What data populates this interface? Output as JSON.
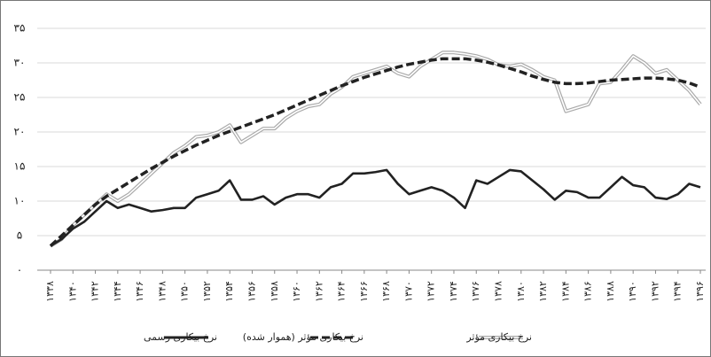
{
  "chart_data": {
    "type": "line",
    "x": [
      1338,
      1339,
      1340,
      1341,
      1342,
      1343,
      1344,
      1345,
      1346,
      1347,
      1348,
      1349,
      1350,
      1351,
      1352,
      1353,
      1354,
      1355,
      1356,
      1357,
      1358,
      1359,
      1360,
      1361,
      1362,
      1363,
      1364,
      1365,
      1366,
      1367,
      1368,
      1369,
      1370,
      1371,
      1372,
      1373,
      1374,
      1375,
      1376,
      1377,
      1378,
      1379,
      1380,
      1381,
      1382,
      1383,
      1384,
      1385,
      1386,
      1387,
      1388,
      1389,
      1390,
      1391,
      1392,
      1393,
      1394,
      1395,
      1396
    ],
    "xlim": [
      1338,
      1396
    ],
    "xticks": [
      {
        "value": 1338,
        "label": "۱۳۳۸"
      },
      {
        "value": 1340,
        "label": "۱۳۴۰"
      },
      {
        "value": 1342,
        "label": "۱۳۴۲"
      },
      {
        "value": 1344,
        "label": "۱۳۴۴"
      },
      {
        "value": 1346,
        "label": "۱۳۴۶"
      },
      {
        "value": 1348,
        "label": "۱۳۴۸"
      },
      {
        "value": 1350,
        "label": "۱۳۵۰"
      },
      {
        "value": 1352,
        "label": "۱۳۵۲"
      },
      {
        "value": 1354,
        "label": "۱۳۵۴"
      },
      {
        "value": 1356,
        "label": "۱۳۵۶"
      },
      {
        "value": 1358,
        "label": "۱۳۵۸"
      },
      {
        "value": 1360,
        "label": "۱۳۶۰"
      },
      {
        "value": 1362,
        "label": "۱۳۶۲"
      },
      {
        "value": 1364,
        "label": "۱۳۶۴"
      },
      {
        "value": 1366,
        "label": "۱۳۶۶"
      },
      {
        "value": 1368,
        "label": "۱۳۶۸"
      },
      {
        "value": 1370,
        "label": "۱۳۷۰"
      },
      {
        "value": 1372,
        "label": "۱۳۷۲"
      },
      {
        "value": 1374,
        "label": "۱۳۷۴"
      },
      {
        "value": 1376,
        "label": "۱۳۷۶"
      },
      {
        "value": 1378,
        "label": "۱۳۷۸"
      },
      {
        "value": 1380,
        "label": "۱۳۸۰"
      },
      {
        "value": 1382,
        "label": "۱۳۸۲"
      },
      {
        "value": 1384,
        "label": "۱۳۸۴"
      },
      {
        "value": 1386,
        "label": "۱۳۸۶"
      },
      {
        "value": 1388,
        "label": "۱۳۸۸"
      },
      {
        "value": 1390,
        "label": "۱۳۹۰"
      },
      {
        "value": 1392,
        "label": "۱۳۹۲"
      },
      {
        "value": 1394,
        "label": "۱۳۹۴"
      },
      {
        "value": 1396,
        "label": "۱۳۹۶"
      }
    ],
    "ylim": [
      0,
      35
    ],
    "yticks": [
      {
        "value": 0,
        "label": "۰"
      },
      {
        "value": 5,
        "label": "۵"
      },
      {
        "value": 10,
        "label": "۱۰"
      },
      {
        "value": 15,
        "label": "۱۵"
      },
      {
        "value": 20,
        "label": "۲۰"
      },
      {
        "value": 25,
        "label": "۲۵"
      },
      {
        "value": 30,
        "label": "۳۰"
      },
      {
        "value": 35,
        "label": "۳۵"
      }
    ],
    "grid": true,
    "series": [
      {
        "name": "نرخ بیکاری رسمی",
        "color": "#222222",
        "style": "solid",
        "values": [
          3.5,
          4.5,
          6,
          7,
          8.5,
          10,
          9,
          9.5,
          9,
          8.5,
          8.7,
          9,
          9,
          10.5,
          11,
          11.5,
          13,
          10.2,
          10.2,
          10.7,
          9.5,
          10.5,
          11,
          11,
          10.5,
          12,
          12.5,
          14,
          14,
          14.2,
          14.5,
          12.5,
          11,
          11.5,
          12,
          11.5,
          10.5,
          9,
          13,
          12.5,
          13.5,
          14.5,
          14.3,
          13,
          11.7,
          10.2,
          11.5,
          11.3,
          10.5,
          10.5,
          12,
          13.5,
          12.3,
          12,
          10.5,
          10.3,
          11,
          12.5,
          12
        ]
      },
      {
        "name": "نرخ بیکاری مؤثر (هموار شده)",
        "color": "#222222",
        "style": "dashed",
        "values": [
          3.5,
          5,
          6.5,
          8,
          9.5,
          10.7,
          11.7,
          12.7,
          13.7,
          14.7,
          15.6,
          16.5,
          17.3,
          18.1,
          18.8,
          19.5,
          20.1,
          20.7,
          21.3,
          21.9,
          22.5,
          23.2,
          23.9,
          24.6,
          25.3,
          26,
          26.7,
          27.3,
          27.9,
          28.4,
          28.9,
          29.4,
          29.8,
          30.1,
          30.4,
          30.6,
          30.6,
          30.6,
          30.4,
          30.1,
          29.7,
          29.2,
          28.7,
          28.1,
          27.6,
          27.2,
          27,
          27,
          27.1,
          27.3,
          27.5,
          27.6,
          27.7,
          27.8,
          27.8,
          27.7,
          27.5,
          27.1,
          26.5
        ]
      },
      {
        "name": "نرخ بیکاری مؤثر",
        "color": "#aaaaaa",
        "style": "double",
        "values": [
          3.5,
          4.5,
          6.5,
          8,
          9.5,
          11,
          10,
          11,
          12.5,
          14,
          15.5,
          17,
          18,
          19.3,
          19.5,
          20,
          21,
          18.5,
          19.5,
          20.5,
          20.5,
          22,
          23,
          23.7,
          24,
          25.5,
          26.5,
          28,
          28.5,
          29,
          29.5,
          28.5,
          28,
          29.5,
          30.5,
          31.5,
          31.5,
          31.3,
          31,
          30.5,
          29.7,
          29.5,
          29.8,
          29,
          28,
          27.5,
          23,
          23.5,
          24,
          27,
          27.2,
          29,
          31,
          30,
          28.5,
          29,
          27.5,
          26,
          24
        ]
      }
    ]
  }
}
